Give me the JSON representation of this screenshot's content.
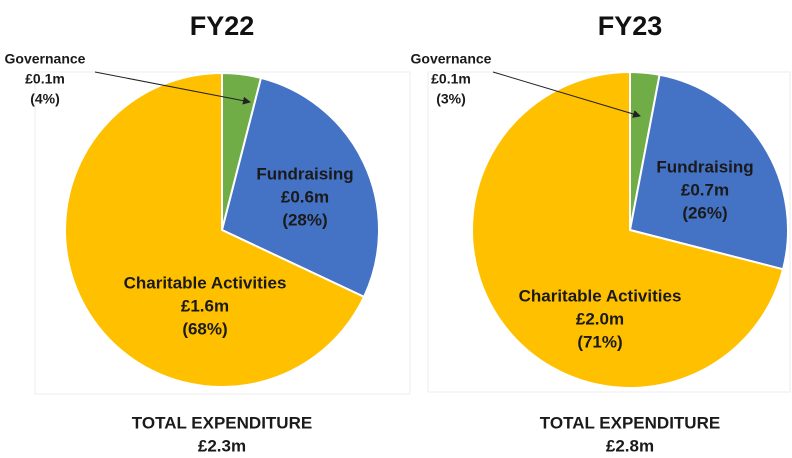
{
  "chart_data": [
    {
      "type": "pie",
      "title": "FY22",
      "categories": [
        "Governance",
        "Fundraising",
        "Charitable Activities"
      ],
      "values": [
        4,
        28,
        68
      ],
      "value_labels": [
        "(4%)",
        "(28%)",
        "(68%)"
      ],
      "amount_labels": [
        "£0.1m",
        "£0.6m",
        "£1.6m"
      ],
      "colors": [
        "#70ad47",
        "#4472c4",
        "#ffc000"
      ],
      "footer": [
        "TOTAL EXPENDITURE",
        "£2.3m"
      ]
    },
    {
      "type": "pie",
      "title": "FY23",
      "categories": [
        "Governance",
        "Fundraising",
        "Charitable Activities"
      ],
      "values": [
        3,
        26,
        71
      ],
      "value_labels": [
        "(3%)",
        "(26%)",
        "(71%)"
      ],
      "amount_labels": [
        "£0.1m",
        "£0.7m",
        "£2.0m"
      ],
      "colors": [
        "#70ad47",
        "#4472c4",
        "#ffc000"
      ],
      "footer": [
        "TOTAL EXPENDITURE",
        "£2.8m"
      ]
    }
  ]
}
